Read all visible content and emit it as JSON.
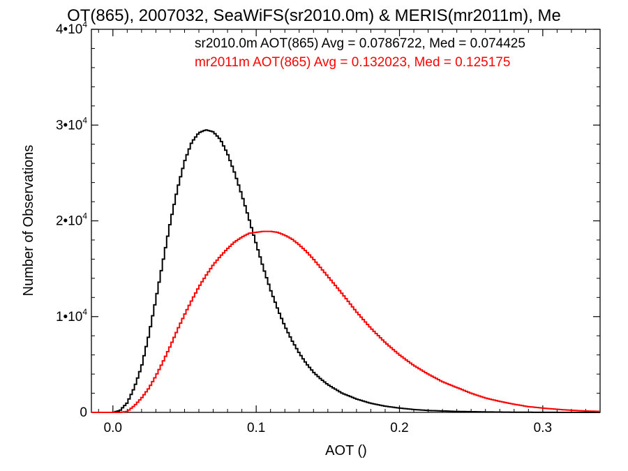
{
  "chart_data": {
    "type": "line",
    "title": "OT(865), 2007032, SeaWiFS(sr2010.0m) & MERIS(mr2011m), Me",
    "xlabel": "AOT ()",
    "ylabel": "Number of Observations",
    "xlim": [
      -0.015,
      0.34
    ],
    "ylim": [
      0,
      40000
    ],
    "x_ticks": [
      {
        "value": 0.0,
        "label": "0.0"
      },
      {
        "value": 0.1,
        "label": "0.1"
      },
      {
        "value": 0.2,
        "label": "0.2"
      },
      {
        "value": 0.3,
        "label": "0.3"
      }
    ],
    "y_ticks": [
      {
        "value": 0,
        "mant": "0",
        "exp": ""
      },
      {
        "value": 10000,
        "mant": "1•10",
        "exp": "4"
      },
      {
        "value": 20000,
        "mant": "2•10",
        "exp": "4"
      },
      {
        "value": 30000,
        "mant": "3•10",
        "exp": "4"
      },
      {
        "value": 40000,
        "mant": "4•10",
        "exp": "4"
      }
    ],
    "grid": false,
    "step_style": "histogram",
    "series": [
      {
        "name": "sr2010.0m AOT(865) Avg = 0.0786722, Med = 0.074425",
        "color": "#000000",
        "x": [
          -0.015,
          0.0,
          0.005,
          0.01,
          0.015,
          0.02,
          0.025,
          0.03,
          0.035,
          0.04,
          0.045,
          0.05,
          0.055,
          0.06,
          0.065,
          0.07,
          0.075,
          0.08,
          0.085,
          0.09,
          0.095,
          0.1,
          0.105,
          0.11,
          0.115,
          0.12,
          0.125,
          0.13,
          0.135,
          0.14,
          0.145,
          0.15,
          0.16,
          0.17,
          0.18,
          0.19,
          0.2,
          0.21,
          0.22,
          0.24,
          0.26,
          0.28,
          0.3,
          0.32,
          0.34
        ],
        "y": [
          0,
          0,
          200,
          1000,
          2600,
          4800,
          8000,
          11800,
          15800,
          19800,
          23300,
          26200,
          28200,
          29200,
          29500,
          29300,
          28500,
          27000,
          25000,
          22700,
          20200,
          17600,
          15100,
          12800,
          10800,
          9000,
          7500,
          6200,
          5100,
          4200,
          3500,
          2900,
          2000,
          1400,
          950,
          650,
          450,
          300,
          200,
          100,
          50,
          20,
          10,
          0,
          0
        ]
      },
      {
        "name": "mr2011m AOT(865) Avg = 0.132023, Med = 0.125175",
        "color": "#ff0000",
        "x": [
          -0.015,
          0.0,
          0.005,
          0.01,
          0.015,
          0.02,
          0.025,
          0.03,
          0.035,
          0.04,
          0.045,
          0.05,
          0.055,
          0.06,
          0.065,
          0.07,
          0.075,
          0.08,
          0.085,
          0.09,
          0.095,
          0.1,
          0.105,
          0.11,
          0.115,
          0.12,
          0.125,
          0.13,
          0.135,
          0.14,
          0.145,
          0.15,
          0.16,
          0.17,
          0.18,
          0.19,
          0.2,
          0.21,
          0.22,
          0.23,
          0.24,
          0.25,
          0.26,
          0.27,
          0.28,
          0.29,
          0.3,
          0.31,
          0.32,
          0.33,
          0.34
        ],
        "y": [
          0,
          0,
          0,
          100,
          700,
          1500,
          2500,
          3800,
          5300,
          6900,
          8600,
          10200,
          11700,
          13100,
          14300,
          15400,
          16300,
          17100,
          17800,
          18300,
          18700,
          18800,
          18900,
          18900,
          18800,
          18500,
          18100,
          17500,
          16800,
          16000,
          15100,
          14200,
          12400,
          10500,
          8800,
          7300,
          6000,
          4900,
          4000,
          3200,
          2600,
          2000,
          1500,
          1150,
          850,
          600,
          450,
          320,
          220,
          150,
          100
        ]
      }
    ]
  }
}
